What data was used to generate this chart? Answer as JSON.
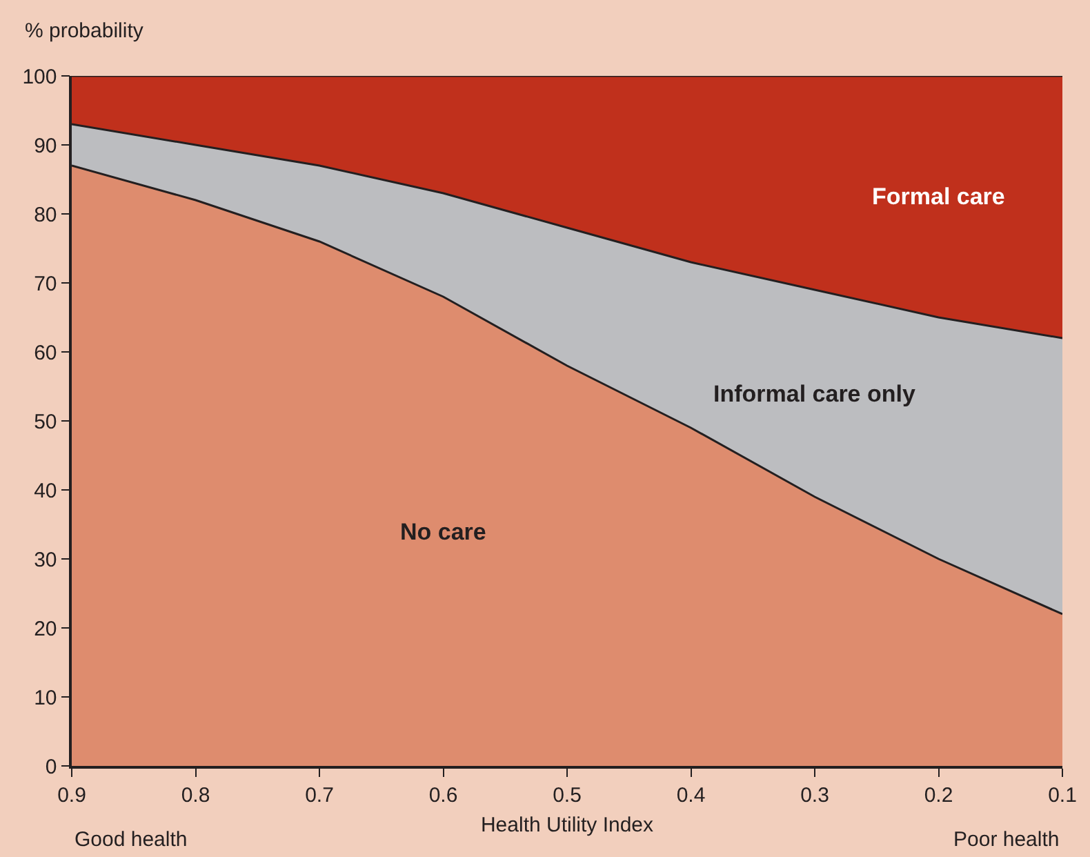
{
  "chart_data": {
    "type": "area",
    "stacked": true,
    "xlabel": "Health Utility Index",
    "ylabel": "% probability",
    "x": [
      0.9,
      0.8,
      0.7,
      0.6,
      0.5,
      0.4,
      0.3,
      0.2,
      0.1
    ],
    "series": [
      {
        "name": "No care",
        "color": "#de8c6e",
        "values": [
          87,
          82,
          76,
          68,
          58,
          49,
          39,
          30,
          22
        ]
      },
      {
        "name": "Informal care only",
        "color": "#bcbdc0",
        "values": [
          6,
          8,
          11,
          15,
          20,
          24,
          30,
          35,
          40
        ]
      },
      {
        "name": "Formal care",
        "color": "#c0301c",
        "values": [
          7,
          10,
          13,
          17,
          22,
          27,
          31,
          35,
          38
        ]
      }
    ],
    "xlim": [
      0.9,
      0.1
    ],
    "xticks": [
      0.9,
      0.8,
      0.7,
      0.6,
      0.5,
      0.4,
      0.3,
      0.2,
      0.1
    ],
    "ylim": [
      0,
      100
    ],
    "yticks": [
      0,
      10,
      20,
      30,
      40,
      50,
      60,
      70,
      80,
      90,
      100
    ],
    "annotations": [
      "Good health",
      "Poor health"
    ],
    "legend": false
  }
}
